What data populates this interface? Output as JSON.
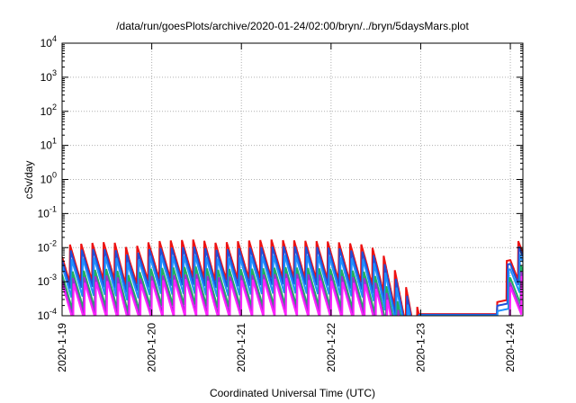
{
  "chart_data": {
    "type": "line",
    "title": "/data/run/goesPlots/archive/2020-01-24/02:00/bryn/../bryn/5daysMars.plot",
    "xlabel": "Coordinated Universal Time (UTC)",
    "ylabel": "cSv/day",
    "yscale": "log",
    "ylim": [
      0.0001,
      10000
    ],
    "xlim": [
      0,
      5.14
    ],
    "grid": true,
    "y_ticks": [
      {
        "value": 0.0001,
        "base": "10",
        "exp": "-4"
      },
      {
        "value": 0.001,
        "base": "10",
        "exp": "-3"
      },
      {
        "value": 0.01,
        "base": "10",
        "exp": "-2"
      },
      {
        "value": 0.1,
        "base": "10",
        "exp": "-1"
      },
      {
        "value": 1,
        "base": "10",
        "exp": "0"
      },
      {
        "value": 10,
        "base": "10",
        "exp": "1"
      },
      {
        "value": 100,
        "base": "10",
        "exp": "2"
      },
      {
        "value": 1000,
        "base": "10",
        "exp": "3"
      },
      {
        "value": 10000,
        "base": "10",
        "exp": "4"
      }
    ],
    "x_ticks": [
      {
        "value": 0,
        "label": "2020-1-19"
      },
      {
        "value": 1,
        "label": "2020-1-20"
      },
      {
        "value": 2,
        "label": "2020-1-21"
      },
      {
        "value": 3,
        "label": "2020-1-22"
      },
      {
        "value": 4,
        "label": "2020-1-23"
      },
      {
        "value": 5,
        "label": "2020-1-24"
      }
    ],
    "series": [
      {
        "color": "#ee1111",
        "offset": 0.0,
        "phase": 0.04
      },
      {
        "color": "#1f4fd8",
        "offset": -0.2,
        "phase": 0.03
      },
      {
        "color": "#1e90ff",
        "offset": -0.45,
        "phase": 0.02
      },
      {
        "color": "#20b060",
        "offset": -0.8,
        "phase": 0.01
      },
      {
        "color": "#9b2fd0",
        "offset": -1.0,
        "phase": 0.005
      },
      {
        "color": "#ff22ff",
        "offset": -1.15,
        "phase": 0.0
      }
    ],
    "envelope": [
      [
        0,
        -1.9
      ],
      [
        0.55,
        -1.8
      ],
      [
        0.75,
        -2.0
      ],
      [
        1.0,
        -1.8
      ],
      [
        1.5,
        -1.75
      ],
      [
        1.7,
        -1.85
      ],
      [
        1.75,
        -1.85
      ],
      [
        2.0,
        -1.8
      ],
      [
        2.5,
        -1.75
      ],
      [
        3.0,
        -1.8
      ],
      [
        3.4,
        -1.9
      ],
      [
        3.55,
        -2.1
      ],
      [
        3.7,
        -2.6
      ],
      [
        3.85,
        -3.2
      ],
      [
        3.95,
        -3.7
      ],
      [
        4.05,
        -3.95
      ],
      [
        4.3,
        -3.95
      ],
      [
        4.6,
        -3.95
      ],
      [
        4.8,
        -3.95
      ],
      [
        5.0,
        -2.0
      ],
      [
        5.14,
        -1.65
      ]
    ]
  }
}
